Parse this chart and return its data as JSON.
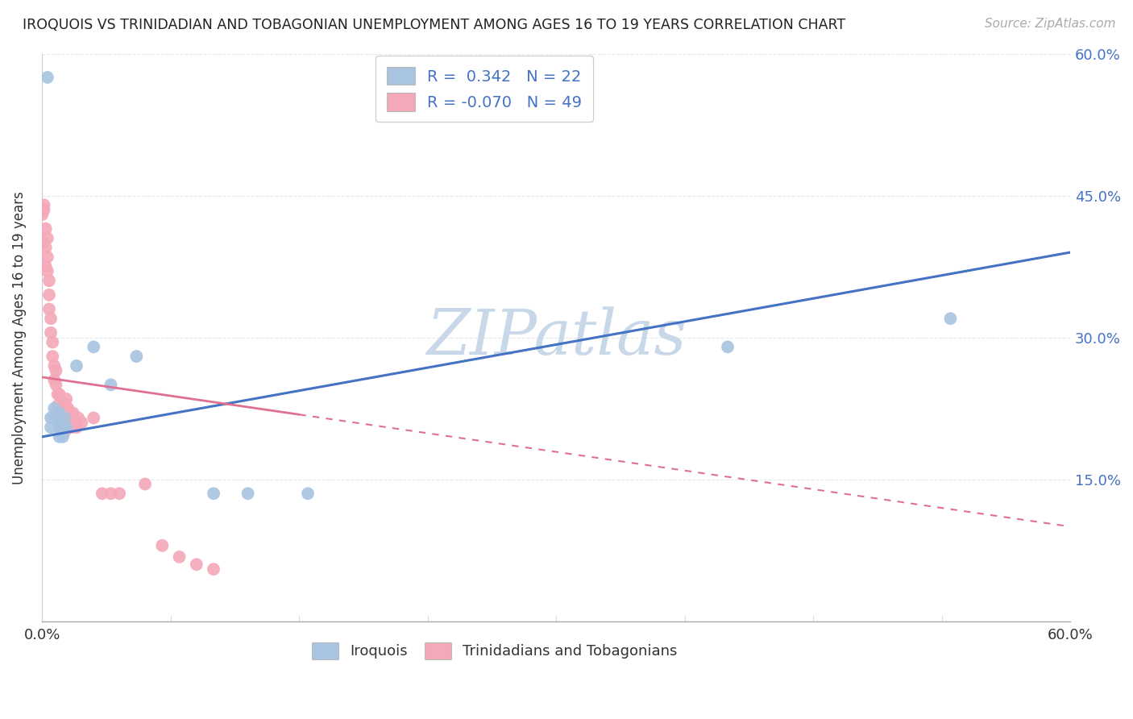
{
  "title": "IROQUOIS VS TRINIDADIAN AND TOBAGONIAN UNEMPLOYMENT AMONG AGES 16 TO 19 YEARS CORRELATION CHART",
  "source": "Source: ZipAtlas.com",
  "ylabel": "Unemployment Among Ages 16 to 19 years",
  "xlim": [
    0.0,
    0.6
  ],
  "ylim": [
    0.0,
    0.6
  ],
  "legend_R1": "0.342",
  "legend_N1": "22",
  "legend_R2": "-0.070",
  "legend_N2": "49",
  "iroquois_color": "#a8c4e0",
  "trinidadian_color": "#f4a8b8",
  "iroquois_line_color": "#4472c4",
  "trinidadian_line_color": "#e07090",
  "background_color": "#ffffff",
  "watermark_color": "#c8d8e8",
  "grid_color": "#e8e8e8",
  "blue_text": "#4472c4",
  "iroquois_points": [
    [
      0.003,
      0.575
    ],
    [
      0.005,
      0.215
    ],
    [
      0.005,
      0.205
    ],
    [
      0.007,
      0.225
    ],
    [
      0.007,
      0.215
    ],
    [
      0.01,
      0.22
    ],
    [
      0.01,
      0.21
    ],
    [
      0.01,
      0.205
    ],
    [
      0.01,
      0.195
    ],
    [
      0.012,
      0.205
    ],
    [
      0.012,
      0.195
    ],
    [
      0.013,
      0.215
    ],
    [
      0.014,
      0.205
    ],
    [
      0.02,
      0.27
    ],
    [
      0.03,
      0.29
    ],
    [
      0.04,
      0.25
    ],
    [
      0.055,
      0.28
    ],
    [
      0.1,
      0.135
    ],
    [
      0.12,
      0.135
    ],
    [
      0.155,
      0.135
    ],
    [
      0.4,
      0.29
    ],
    [
      0.53,
      0.32
    ]
  ],
  "trinidadian_points": [
    [
      0.0,
      0.43
    ],
    [
      0.0,
      0.4
    ],
    [
      0.001,
      0.44
    ],
    [
      0.001,
      0.435
    ],
    [
      0.002,
      0.415
    ],
    [
      0.002,
      0.395
    ],
    [
      0.002,
      0.375
    ],
    [
      0.003,
      0.405
    ],
    [
      0.003,
      0.385
    ],
    [
      0.003,
      0.37
    ],
    [
      0.004,
      0.36
    ],
    [
      0.004,
      0.345
    ],
    [
      0.004,
      0.33
    ],
    [
      0.005,
      0.32
    ],
    [
      0.005,
      0.305
    ],
    [
      0.006,
      0.295
    ],
    [
      0.006,
      0.28
    ],
    [
      0.007,
      0.27
    ],
    [
      0.007,
      0.255
    ],
    [
      0.008,
      0.265
    ],
    [
      0.008,
      0.25
    ],
    [
      0.009,
      0.24
    ],
    [
      0.009,
      0.228
    ],
    [
      0.01,
      0.24
    ],
    [
      0.01,
      0.225
    ],
    [
      0.011,
      0.215
    ],
    [
      0.011,
      0.205
    ],
    [
      0.012,
      0.215
    ],
    [
      0.012,
      0.205
    ],
    [
      0.013,
      0.2
    ],
    [
      0.013,
      0.215
    ],
    [
      0.013,
      0.23
    ],
    [
      0.014,
      0.235
    ],
    [
      0.015,
      0.225
    ],
    [
      0.016,
      0.215
    ],
    [
      0.017,
      0.205
    ],
    [
      0.018,
      0.22
    ],
    [
      0.02,
      0.205
    ],
    [
      0.021,
      0.215
    ],
    [
      0.023,
      0.21
    ],
    [
      0.03,
      0.215
    ],
    [
      0.035,
      0.135
    ],
    [
      0.04,
      0.135
    ],
    [
      0.045,
      0.135
    ],
    [
      0.06,
      0.145
    ],
    [
      0.07,
      0.08
    ],
    [
      0.08,
      0.068
    ],
    [
      0.09,
      0.06
    ],
    [
      0.1,
      0.055
    ]
  ],
  "iroquois_line": [
    0.0,
    0.6
  ],
  "iroquois_line_endpoints": [
    [
      0.0,
      0.195
    ],
    [
      0.6,
      0.39
    ]
  ],
  "trinidadian_line_endpoints": [
    [
      0.0,
      0.258
    ],
    [
      0.6,
      0.1
    ]
  ]
}
